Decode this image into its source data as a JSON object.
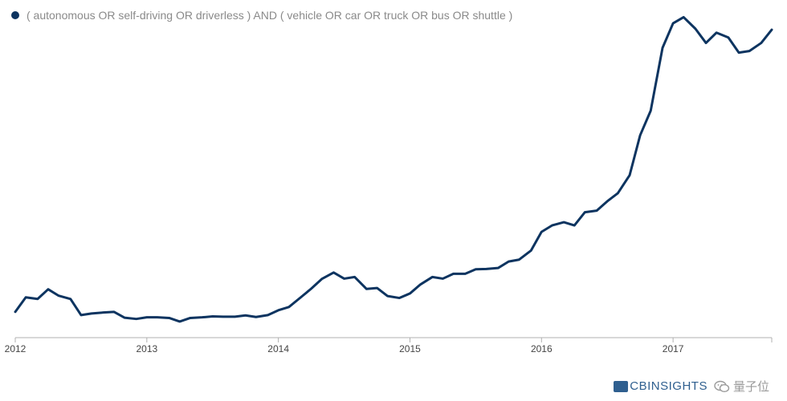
{
  "legend": {
    "label": "( autonomous OR self-driving OR driverless ) AND ( vehicle OR car OR truck OR bus OR shuttle )",
    "color": "#0d3460"
  },
  "watermark": {
    "logo_label": "CBINSIGHTS",
    "wechat_label": "量子位",
    "wechat_icon": "wechat-icon"
  },
  "chart_data": {
    "type": "line",
    "title": "",
    "xlabel": "",
    "ylabel": "",
    "ylim": [
      0,
      100
    ],
    "grid": false,
    "legend_placement": "top-left",
    "x_ticks": [
      "2012",
      "2013",
      "2014",
      "2015",
      "2016",
      "2017"
    ],
    "series": [
      {
        "name": "( autonomous OR self-driving OR driverless ) AND ( vehicle OR car OR truck OR bus OR shuttle )",
        "color": "#0d3460",
        "x": [
          2012.0,
          2012.08,
          2012.17,
          2012.25,
          2012.33,
          2012.42,
          2012.5,
          2012.58,
          2012.67,
          2012.75,
          2012.83,
          2012.92,
          2013.0,
          2013.08,
          2013.17,
          2013.25,
          2013.33,
          2013.42,
          2013.5,
          2013.58,
          2013.67,
          2013.75,
          2013.83,
          2013.92,
          2014.0,
          2014.08,
          2014.17,
          2014.25,
          2014.33,
          2014.42,
          2014.5,
          2014.58,
          2014.67,
          2014.75,
          2014.83,
          2014.92,
          2015.0,
          2015.08,
          2015.17,
          2015.25,
          2015.33,
          2015.42,
          2015.5,
          2015.58,
          2015.67,
          2015.75,
          2015.83,
          2015.92,
          2016.0,
          2016.08,
          2016.17,
          2016.25,
          2016.33,
          2016.42,
          2016.5,
          2016.58,
          2016.67,
          2016.75,
          2016.83,
          2016.92,
          2017.0,
          2017.08,
          2017.17,
          2017.25,
          2017.33,
          2017.42,
          2017.5,
          2017.58,
          2017.67,
          2017.75
        ],
        "values": [
          8,
          12.5,
          12,
          15,
          13,
          12,
          7,
          7.5,
          7.8,
          8,
          6.2,
          5.8,
          6.3,
          6.3,
          6.1,
          5,
          6.1,
          6.3,
          6.6,
          6.5,
          6.5,
          6.9,
          6.4,
          7,
          8.5,
          9.5,
          12.5,
          15.2,
          18.2,
          20.2,
          18.3,
          18.8,
          15.1,
          15.4,
          12.9,
          12.3,
          13.7,
          16.5,
          18.8,
          18.3,
          19.8,
          19.8,
          21.2,
          21.3,
          21.6,
          23.6,
          24.2,
          27,
          32.8,
          34.8,
          35.8,
          34.8,
          38.9,
          39.4,
          42.3,
          44.8,
          50.4,
          62.8,
          70.4,
          89.9,
          97.5,
          99.4,
          95.8,
          91.4,
          94.6,
          93.1,
          88.4,
          88.9,
          91.4,
          95.5
        ]
      }
    ]
  }
}
